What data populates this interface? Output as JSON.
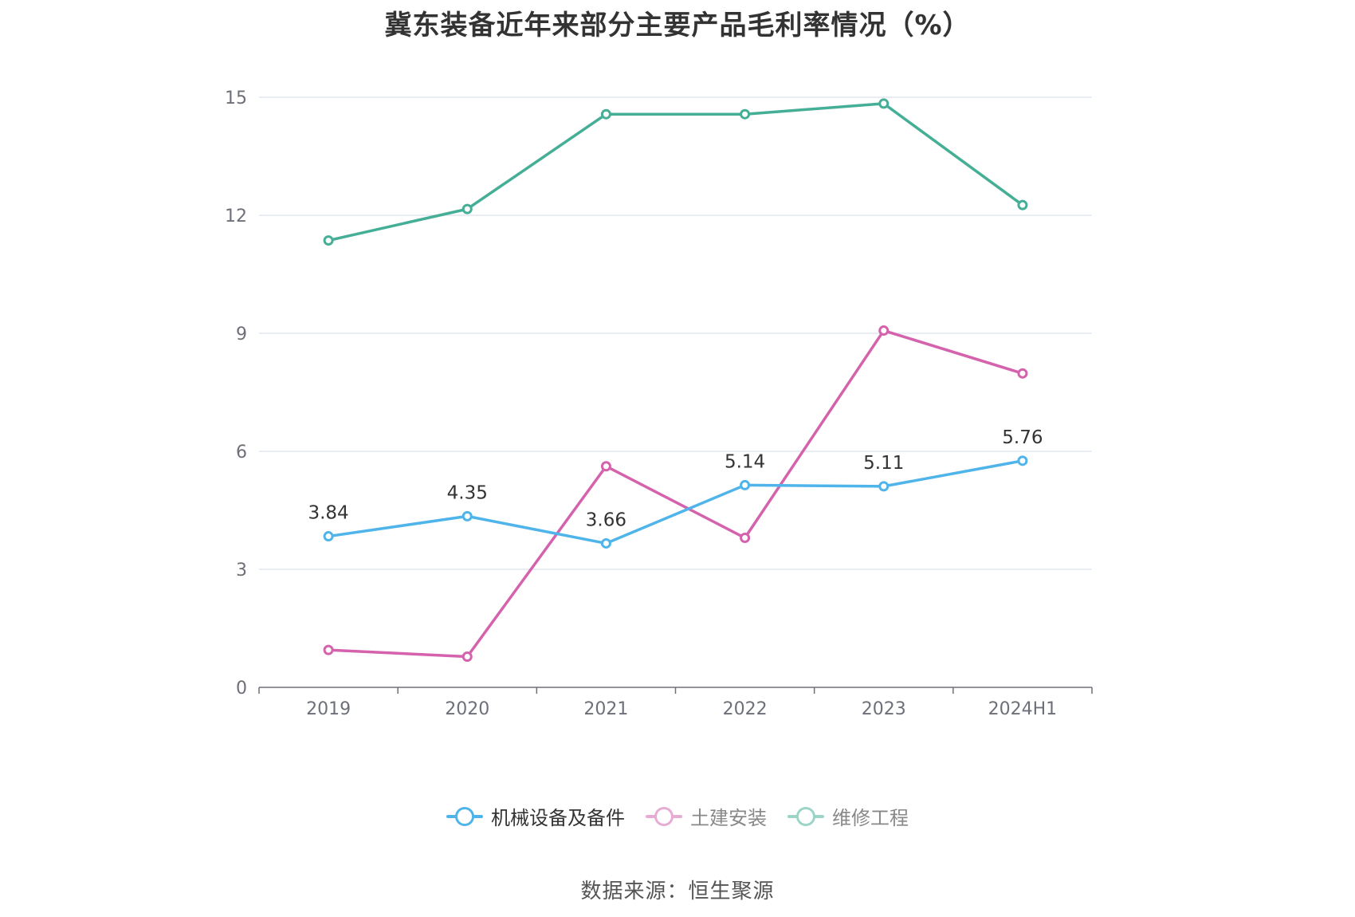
{
  "title": "冀东装备近年来部分主要产品毛利率情况（%）",
  "source": "数据来源：恒生聚源",
  "chart_data": {
    "type": "line",
    "title": "冀东装备近年来部分主要产品毛利率情况（%）",
    "categories": [
      "2019",
      "2020",
      "2021",
      "2022",
      "2023",
      "2024H1"
    ],
    "yticks": [
      0,
      3,
      6,
      9,
      12,
      15
    ],
    "ylim": [
      0,
      15
    ],
    "grid": true,
    "legend_position": "bottom",
    "series": [
      {
        "name": "机械设备及备件",
        "color": "#4fb4ea",
        "values": [
          3.84,
          4.35,
          3.66,
          5.14,
          5.11,
          5.76
        ],
        "show_labels": true,
        "labels": [
          "3.84",
          "4.35",
          "3.66",
          "5.14",
          "5.11",
          "5.76"
        ],
        "active": true
      },
      {
        "name": "土建安装",
        "color": "#d462ac",
        "values": [
          0.95,
          0.78,
          5.62,
          3.8,
          9.07,
          7.98
        ],
        "show_labels": false,
        "active": false
      },
      {
        "name": "维修工程",
        "color": "#45ae96",
        "values": [
          11.36,
          12.16,
          14.57,
          14.57,
          14.84,
          12.26
        ],
        "show_labels": false,
        "active": false
      }
    ]
  }
}
